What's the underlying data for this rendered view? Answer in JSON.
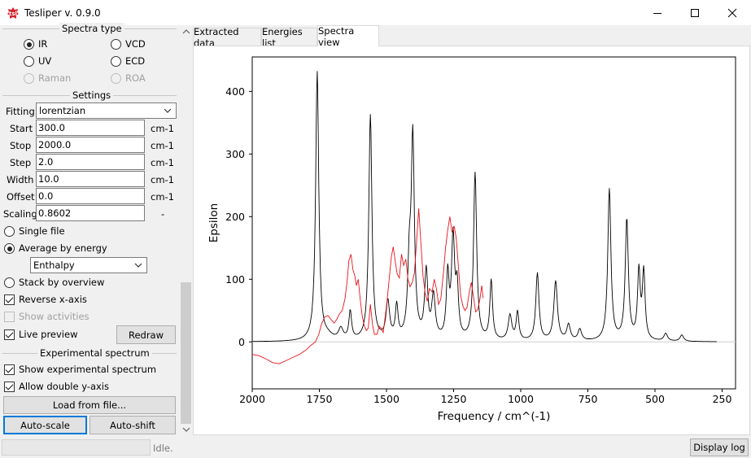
{
  "window": {
    "title": "Tesliper v. 0.9.0",
    "icons": {
      "app": "tesliper-app-icon",
      "minimize": "minimize-icon",
      "maximize": "maximize-icon",
      "close": "close-icon"
    }
  },
  "spectra_type": {
    "title": "Spectra type",
    "options": [
      {
        "label": "IR",
        "selected": true,
        "enabled": true
      },
      {
        "label": "VCD",
        "selected": false,
        "enabled": true
      },
      {
        "label": "UV",
        "selected": false,
        "enabled": true
      },
      {
        "label": "ECD",
        "selected": false,
        "enabled": true
      },
      {
        "label": "Raman",
        "selected": false,
        "enabled": false
      },
      {
        "label": "ROA",
        "selected": false,
        "enabled": false
      }
    ]
  },
  "settings": {
    "title": "Settings",
    "fitting_label": "Fitting",
    "fitting_value": "lorentzian",
    "params": [
      {
        "label": "Start",
        "value": "300.0",
        "unit": "cm-1"
      },
      {
        "label": "Stop",
        "value": "2000.0",
        "unit": "cm-1"
      },
      {
        "label": "Step",
        "value": "2.0",
        "unit": "cm-1"
      },
      {
        "label": "Width",
        "value": "10.0",
        "unit": "cm-1"
      },
      {
        "label": "Offset",
        "value": "0.0",
        "unit": "cm-1"
      },
      {
        "label": "Scaling",
        "value": "0.8602",
        "unit": "-"
      }
    ],
    "single_file_label": "Single file",
    "average_label": "Average by energy",
    "energy_value": "Enthalpy",
    "stack_label": "Stack by overview",
    "reverse_label": "Reverse x-axis",
    "show_activities_label": "Show activities",
    "live_preview_label": "Live preview",
    "redraw_label": "Redraw"
  },
  "experimental": {
    "title": "Experimental spectrum",
    "show_label": "Show experimental spectrum",
    "double_axis_label": "Allow double y-axis",
    "load_label": "Load from file...",
    "autoscale_label": "Auto-scale",
    "autoshift_label": "Auto-shift"
  },
  "tabs": [
    {
      "label": "Extracted data",
      "active": false
    },
    {
      "label": "Energies list",
      "active": false
    },
    {
      "label": "Spectra view",
      "active": true
    }
  ],
  "status": {
    "text": "Idle.",
    "display_log_label": "Display log"
  },
  "chart_data": {
    "type": "line",
    "title": "",
    "xlabel": "Frequency / cm^(-1)",
    "ylabel": "Epsilon",
    "xlim": [
      2000,
      200
    ],
    "ylim": [
      -75,
      455
    ],
    "xticks": [
      2000,
      1750,
      1500,
      1250,
      1000,
      750,
      500,
      250
    ],
    "yticks": [
      0,
      100,
      200,
      300,
      400
    ],
    "grid": false,
    "legend": "none",
    "reference_line": 0,
    "series": [
      {
        "color": "#000000",
        "peaks": [
          [
            1758,
            430
          ],
          [
            1718,
            6
          ],
          [
            1670,
            18
          ],
          [
            1635,
            45
          ],
          [
            1560,
            360
          ],
          [
            1495,
            60
          ],
          [
            1462,
            52
          ],
          [
            1415,
            106
          ],
          [
            1402,
            318
          ],
          [
            1352,
            107
          ],
          [
            1325,
            68
          ],
          [
            1272,
            100
          ],
          [
            1252,
            160
          ],
          [
            1237,
            76
          ],
          [
            1170,
            267
          ],
          [
            1110,
            95
          ],
          [
            1040,
            40
          ],
          [
            1012,
            45
          ],
          [
            938,
            108
          ],
          [
            870,
            95
          ],
          [
            822,
            25
          ],
          [
            780,
            18
          ],
          [
            670,
            242
          ],
          [
            605,
            193
          ],
          [
            560,
            108
          ],
          [
            542,
            108
          ],
          [
            460,
            12
          ],
          [
            400,
            10
          ]
        ],
        "widths": [
          7,
          20,
          10,
          6,
          7,
          8,
          6,
          7,
          7,
          7,
          8,
          6,
          7,
          6,
          7,
          6,
          8,
          6,
          7,
          8,
          8,
          8,
          7,
          7,
          6,
          6,
          8,
          8
        ],
        "x_range": [
          2000,
          270
        ]
      },
      {
        "color": "#e8141b",
        "points": [
          [
            2000,
            -20
          ],
          [
            1975,
            -22
          ],
          [
            1950,
            -27
          ],
          [
            1925,
            -33
          ],
          [
            1900,
            -35
          ],
          [
            1875,
            -30
          ],
          [
            1850,
            -25
          ],
          [
            1825,
            -20
          ],
          [
            1800,
            -13
          ],
          [
            1780,
            -5
          ],
          [
            1765,
            0
          ],
          [
            1752,
            12
          ],
          [
            1742,
            28
          ],
          [
            1730,
            40
          ],
          [
            1718,
            42
          ],
          [
            1705,
            35
          ],
          [
            1695,
            30
          ],
          [
            1685,
            36
          ],
          [
            1675,
            45
          ],
          [
            1665,
            50
          ],
          [
            1655,
            68
          ],
          [
            1647,
            95
          ],
          [
            1640,
            130
          ],
          [
            1632,
            140
          ],
          [
            1625,
            115
          ],
          [
            1618,
            105
          ],
          [
            1612,
            90
          ],
          [
            1605,
            100
          ],
          [
            1598,
            68
          ],
          [
            1590,
            40
          ],
          [
            1582,
            25
          ],
          [
            1575,
            18
          ],
          [
            1568,
            22
          ],
          [
            1560,
            60
          ],
          [
            1552,
            28
          ],
          [
            1545,
            12
          ],
          [
            1535,
            12
          ],
          [
            1528,
            25
          ],
          [
            1520,
            22
          ],
          [
            1512,
            15
          ],
          [
            1505,
            40
          ],
          [
            1498,
            65
          ],
          [
            1490,
            100
          ],
          [
            1482,
            135
          ],
          [
            1475,
            152
          ],
          [
            1468,
            130
          ],
          [
            1460,
            108
          ],
          [
            1452,
            102
          ],
          [
            1444,
            140
          ],
          [
            1436,
            122
          ],
          [
            1428,
            132
          ],
          [
            1420,
            100
          ],
          [
            1412,
            88
          ],
          [
            1404,
            95
          ],
          [
            1396,
            110
          ],
          [
            1388,
            160
          ],
          [
            1380,
            213
          ],
          [
            1372,
            160
          ],
          [
            1364,
            105
          ],
          [
            1356,
            78
          ],
          [
            1348,
            65
          ],
          [
            1340,
            85
          ],
          [
            1330,
            80
          ],
          [
            1322,
            100
          ],
          [
            1314,
            85
          ],
          [
            1306,
            60
          ],
          [
            1298,
            68
          ],
          [
            1288,
            110
          ],
          [
            1280,
            150
          ],
          [
            1272,
            178
          ],
          [
            1264,
            200
          ],
          [
            1256,
            175
          ],
          [
            1248,
            185
          ],
          [
            1240,
            165
          ],
          [
            1232,
            120
          ],
          [
            1224,
            75
          ],
          [
            1216,
            58
          ],
          [
            1208,
            50
          ],
          [
            1200,
            55
          ],
          [
            1192,
            78
          ],
          [
            1184,
            95
          ],
          [
            1176,
            72
          ],
          [
            1168,
            48
          ],
          [
            1160,
            52
          ],
          [
            1152,
            68
          ],
          [
            1145,
            90
          ],
          [
            1140,
            70
          ]
        ]
      }
    ]
  }
}
